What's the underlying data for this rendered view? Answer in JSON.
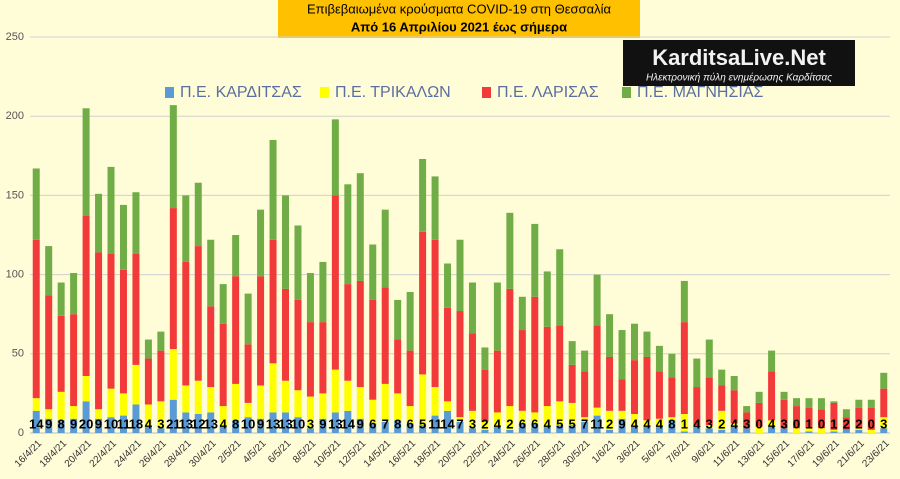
{
  "chart_data": {
    "type": "stacked_bar",
    "title": "Επιβεβαιωμένα κρούσματα COVID-19 στη Θεσσαλία",
    "subtitle": "Από 16 Απριλίου 2021 έως σήμερα",
    "categories": [
      "16/4/21",
      null,
      "18/4/21",
      null,
      "20/4/21",
      null,
      "22/4/21",
      null,
      "24/4/21",
      null,
      "26/4/21",
      null,
      "28/4/21",
      null,
      "30/4/21",
      null,
      "2/5/21",
      null,
      "4/5/21",
      null,
      "6/5/21",
      null,
      "8/5/21",
      null,
      "10/5/21",
      null,
      "12/5/21",
      null,
      "14/5/21",
      null,
      "16/5/21",
      null,
      "18/5/21",
      null,
      "20/5/21",
      null,
      "22/5/21",
      null,
      "24/5/21",
      null,
      "26/5/21",
      null,
      "28/5/21",
      null,
      "30/5/21",
      null,
      "1/6/21",
      null,
      "3/6/21",
      null,
      "5/6/21",
      null,
      "7/6/21",
      null,
      "9/6/21",
      null,
      "11/6/21",
      null,
      "13/6/21",
      null,
      "15/6/21",
      null,
      "17/6/21",
      null,
      "19/6/21",
      null,
      "21/6/21",
      null,
      "23/6/21"
    ],
    "series": [
      {
        "name": "Π.Ε. ΚΑΡΔΙΤΣΑΣ",
        "color": "#5b9bd5",
        "values": [
          14,
          9,
          8,
          9,
          20,
          9,
          10,
          11,
          18,
          4,
          3,
          21,
          13,
          12,
          13,
          4,
          8,
          10,
          9,
          13,
          13,
          10,
          3,
          9,
          13,
          14,
          9,
          6,
          7,
          8,
          6,
          5,
          11,
          14,
          7,
          3,
          2,
          4,
          2,
          6,
          6,
          4,
          5,
          5,
          7,
          11,
          2,
          9,
          4,
          4,
          4,
          8,
          1,
          4,
          3,
          2,
          4,
          3,
          0,
          4,
          3,
          0,
          1,
          0,
          1,
          2,
          2,
          0,
          3
        ]
      },
      {
        "name": "Π.Ε. ΤΡΙΚΑΛΩΝ",
        "color": "#ffff00",
        "values": [
          8,
          6,
          18,
          8,
          16,
          6,
          18,
          14,
          25,
          14,
          17,
          32,
          17,
          21,
          16,
          13,
          23,
          9,
          21,
          31,
          20,
          17,
          20,
          16,
          27,
          19,
          20,
          15,
          24,
          17,
          11,
          32,
          18,
          6,
          3,
          11,
          5,
          9,
          15,
          8,
          7,
          13,
          15,
          14,
          3,
          5,
          12,
          5,
          8,
          4,
          5,
          2,
          11,
          1,
          2,
          12,
          2,
          0,
          4,
          4,
          0,
          3,
          2,
          3,
          1,
          0,
          1,
          2,
          7
        ]
      },
      {
        "name": "Π.Ε. ΛΑΡΙΣΑΣ",
        "color": "#f23a3a",
        "values": [
          100,
          72,
          48,
          58,
          101,
          99,
          85,
          78,
          70,
          29,
          32,
          89,
          78,
          85,
          51,
          52,
          68,
          37,
          69,
          78,
          58,
          57,
          47,
          45,
          110,
          61,
          67,
          63,
          61,
          34,
          35,
          90,
          93,
          59,
          67,
          49,
          33,
          39,
          74,
          51,
          73,
          50,
          48,
          24,
          29,
          52,
          34,
          20,
          34,
          40,
          30,
          25,
          58,
          24,
          30,
          16,
          21,
          10,
          15,
          31,
          18,
          14,
          13,
          12,
          17,
          8,
          13,
          14,
          18
        ]
      },
      {
        "name": "Π.Ε. ΜΑΓΝΗΣΙΑΣ",
        "color": "#70ad47",
        "values": [
          45,
          31,
          21,
          26,
          68,
          37,
          55,
          41,
          39,
          12,
          12,
          65,
          42,
          40,
          42,
          25,
          26,
          32,
          42,
          63,
          59,
          47,
          31,
          38,
          48,
          63,
          68,
          35,
          49,
          25,
          37,
          46,
          40,
          28,
          45,
          32,
          14,
          43,
          48,
          21,
          46,
          35,
          48,
          15,
          13,
          32,
          27,
          31,
          23,
          16,
          16,
          15,
          26,
          18,
          24,
          10,
          9,
          4,
          7,
          13,
          5,
          5,
          6,
          7,
          1,
          5,
          5,
          5,
          10
        ]
      }
    ],
    "label_series": 0,
    "ylim": [
      0,
      250
    ],
    "yticks": [
      0,
      50,
      100,
      150,
      200,
      250
    ],
    "grid": true
  },
  "logo": {
    "name": "KarditsaLive.Net",
    "tagline": "Ηλεκτρονική πύλη ενημέρωσης Καρδίτσας"
  }
}
